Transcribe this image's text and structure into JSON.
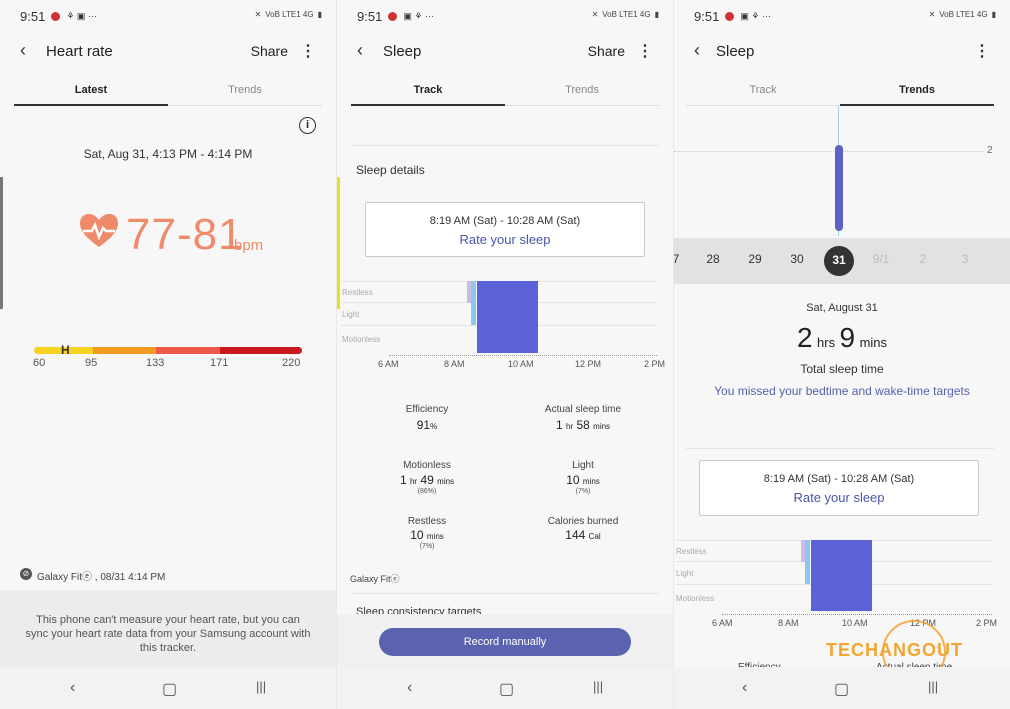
{
  "status": {
    "time": "9:51",
    "signal": "VoB LTE1 4G"
  },
  "p1": {
    "title": "Heart rate",
    "share": "Share",
    "tab_latest": "Latest",
    "tab_trends": "Trends",
    "datetime": "Sat, Aug 31, 4:13 PM - 4:14 PM",
    "value": "77-81",
    "unit": "bpm",
    "scale": [
      "60",
      "95",
      "133",
      "171",
      "220"
    ],
    "device": "Galaxy Fitⓔ , 08/31 4:14 PM",
    "message": "This phone can't measure your heart rate, but you can sync your heart rate data from your Samsung account with this tracker."
  },
  "p2": {
    "title": "Sleep",
    "share": "Share",
    "tab_track": "Track",
    "tab_trends": "Trends",
    "details": "Sleep details",
    "range": "8:19 AM (Sat) - 10:28 AM (Sat)",
    "rate": "Rate your sleep",
    "lbl_restless": "Restless",
    "lbl_light": "Light",
    "lbl_motionless": "Motionless",
    "axis": [
      "6 AM",
      "8 AM",
      "10 AM",
      "12 PM",
      "2 PM"
    ],
    "eff_t": "Efficiency",
    "eff_v": "91",
    "eff_u": "%",
    "act_t": "Actual sleep time",
    "act_h": "1",
    "act_hu": "hr",
    "act_m": "58",
    "act_mu": "mins",
    "mot_t": "Motionless",
    "mot_h": "1",
    "mot_hu": "hr",
    "mot_m": "49",
    "mot_mu": "mins",
    "mot_p": "(86%)",
    "lig_t": "Light",
    "lig_v": "10",
    "lig_u": "mins",
    "lig_p": "(7%)",
    "res_t": "Restless",
    "res_v": "10",
    "res_u": "mins",
    "res_p": "(7%)",
    "cal_t": "Calories burned",
    "cal_v": "144",
    "cal_u": "Cal",
    "device": "Galaxy Fitⓔ",
    "consistency": "Sleep consistency targets",
    "record": "Record manually"
  },
  "p3": {
    "title": "Sleep",
    "tab_track": "Track",
    "tab_trends": "Trends",
    "y_tick": "2",
    "dates": [
      "7",
      "28",
      "29",
      "30",
      "31",
      "9/1",
      "2",
      "3"
    ],
    "date_label": "Sat, August 31",
    "h": "2",
    "hu": "hrs",
    "m": "9",
    "mu": "mins",
    "total": "Total sleep time",
    "missed": "You missed your bedtime and wake-time targets",
    "range": "8:19 AM (Sat) - 10:28 AM (Sat)",
    "rate": "Rate your sleep",
    "lbl_restless": "Restless",
    "lbl_light": "Light",
    "lbl_motionless": "Motionless",
    "axis": [
      "6 AM",
      "8 AM",
      "10 AM",
      "12 PM",
      "2 PM"
    ],
    "eff_t": "Efficiency",
    "act_t": "Actual sleep time",
    "watermark": "TECHANGOUT"
  },
  "colors": {
    "accent": "#5b62c4",
    "heart": "#ef8a6a",
    "nav_purple": "#4b55a8"
  }
}
